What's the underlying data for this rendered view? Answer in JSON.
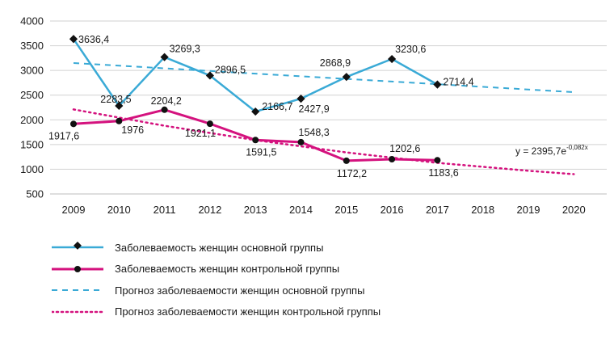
{
  "chart_data": {
    "type": "line",
    "x": [
      2009,
      2010,
      2011,
      2012,
      2013,
      2014,
      2015,
      2016,
      2017,
      2018,
      2019,
      2020
    ],
    "ylim": [
      500,
      4000
    ],
    "yticks": [
      500,
      1000,
      1500,
      2000,
      2500,
      3000,
      3500,
      4000
    ],
    "grid": true,
    "legend_position": "bottom",
    "equation": "y = 2395,7e",
    "equation_exponent": "-0,082x",
    "series": [
      {
        "name": "Заболеваемость женщин основной группы",
        "color": "#3aaad6",
        "style": "solid",
        "marker": "diamond",
        "x": [
          2009,
          2010,
          2011,
          2012,
          2013,
          2014,
          2015,
          2016,
          2017
        ],
        "values": [
          3636.4,
          2283.5,
          3269.3,
          2896.5,
          2166.7,
          2427.9,
          2868.9,
          3230.6,
          2714.4
        ],
        "labels": [
          "3636,4",
          "2283,5",
          "3269,3",
          "2896,5",
          "2166,7",
          "2427,9",
          "2868,9",
          "3230,6",
          "2714,4"
        ]
      },
      {
        "name": "Заболеваемость женщин контрольной группы",
        "color": "#d4127e",
        "style": "solid",
        "marker": "circle",
        "x": [
          2009,
          2010,
          2011,
          2012,
          2013,
          2014,
          2015,
          2016,
          2017
        ],
        "values": [
          1917.6,
          1976,
          2204.2,
          1921.1,
          1591.5,
          1548.3,
          1172.2,
          1202.6,
          1183.6
        ],
        "labels": [
          "1917,6",
          "1976",
          "2204,2",
          "1921,1",
          "1591,5",
          "1548,3",
          "1172,2",
          "1202,6",
          "1183,6"
        ]
      },
      {
        "name": "Прогноз заболеваемости  женщин основной группы",
        "color": "#3aaad6",
        "style": "dashed",
        "x": [
          2009,
          2020
        ],
        "values": [
          3150,
          2560
        ]
      },
      {
        "name": "Прогноз заболеваемости  женщин контрольной группы",
        "color": "#d4127e",
        "style": "dotted",
        "x": [
          2009,
          2011,
          2013,
          2015,
          2017,
          2019,
          2020
        ],
        "values": [
          2210,
          1880,
          1590,
          1340,
          1130,
          970,
          900
        ]
      }
    ]
  }
}
